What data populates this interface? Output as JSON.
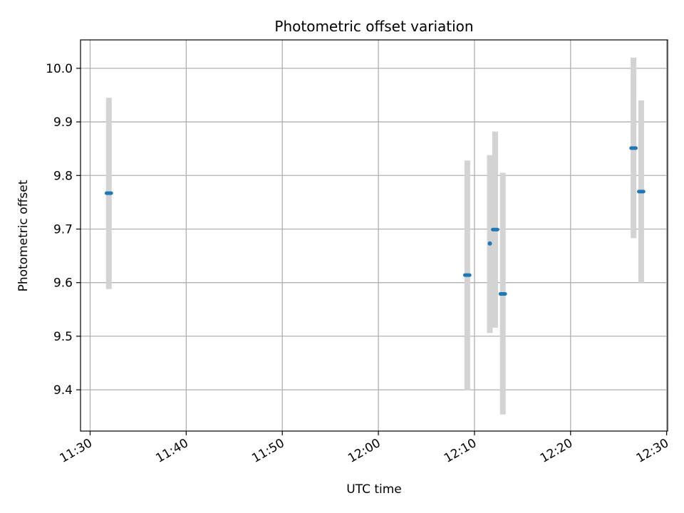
{
  "chart_data": {
    "type": "scatter",
    "title": "Photometric offset variation",
    "xlabel": "UTC time",
    "ylabel": "Photometric offset",
    "x_axis_type": "time",
    "xlim": [
      "11:29:00",
      "12:30:06"
    ],
    "ylim": [
      9.323,
      10.053
    ],
    "xticks": [
      "11:30",
      "11:40",
      "11:50",
      "12:00",
      "12:10",
      "12:20",
      "12:30"
    ],
    "yticks": [
      "9.4",
      "9.5",
      "9.6",
      "9.7",
      "9.8",
      "9.9",
      "10.0"
    ],
    "grid": true,
    "colors": {
      "points": "#1f77b4",
      "error_bars": "#d3d3d3",
      "grid": "#b0b0b0"
    },
    "points": [
      {
        "x_start": "11:31:42",
        "x_end": "11:32:12",
        "y": 9.767,
        "y_low": 9.588,
        "y_high": 9.945
      },
      {
        "x_start": "12:09:00",
        "x_end": "12:09:30",
        "y": 9.614,
        "y_low": 9.399,
        "y_high": 9.828
      },
      {
        "x_start": "12:11:36",
        "x_end": "12:11:36",
        "y": 9.673,
        "y_low": 9.506,
        "y_high": 9.838
      },
      {
        "x_start": "12:11:54",
        "x_end": "12:12:24",
        "y": 9.699,
        "y_low": 9.516,
        "y_high": 9.882
      },
      {
        "x_start": "12:12:42",
        "x_end": "12:13:12",
        "y": 9.579,
        "y_low": 9.354,
        "y_high": 9.805
      },
      {
        "x_start": "12:26:18",
        "x_end": "12:26:48",
        "y": 9.851,
        "y_low": 9.683,
        "y_high": 10.02
      },
      {
        "x_start": "12:27:06",
        "x_end": "12:27:36",
        "y": 9.77,
        "y_low": 9.6,
        "y_high": 9.94
      }
    ]
  }
}
